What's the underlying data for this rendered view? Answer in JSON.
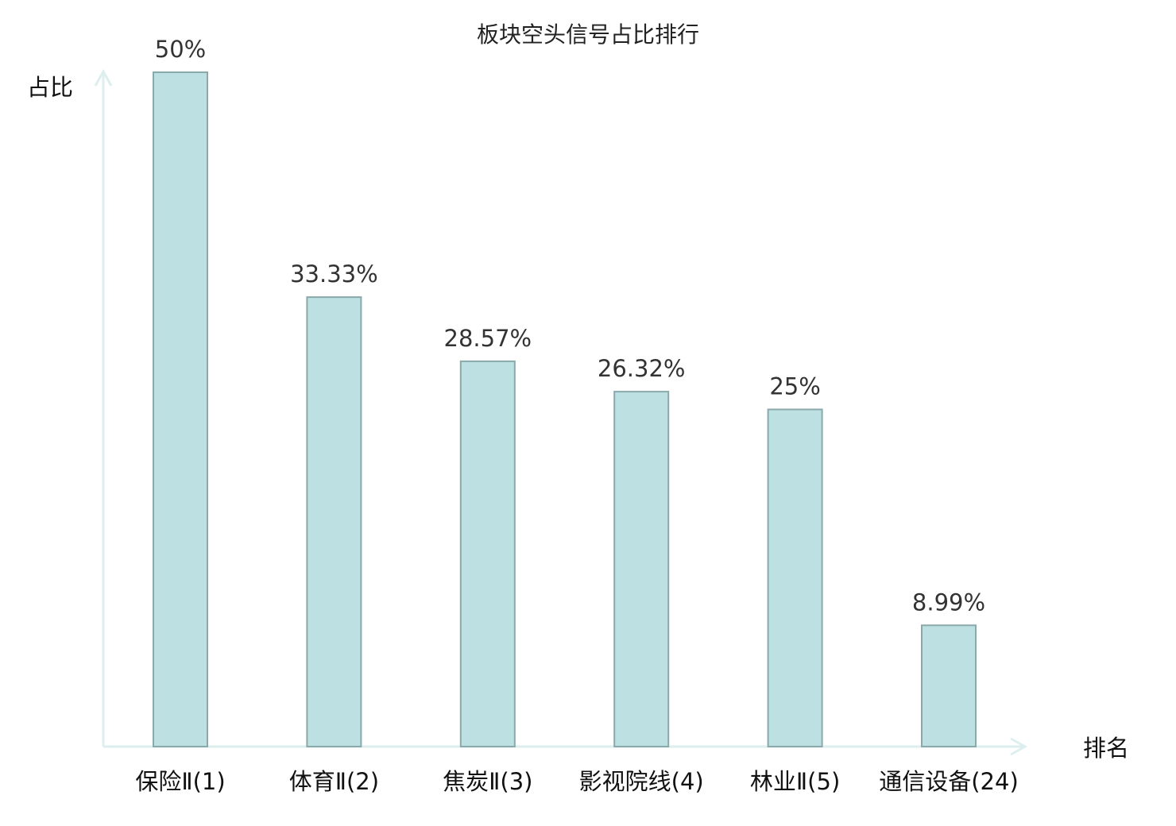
{
  "chart_data": {
    "type": "bar",
    "title": "板块空头信号占比排行",
    "ylabel": "占比",
    "xlabel": "排名",
    "categories": [
      "保险Ⅱ(1)",
      "体育Ⅱ(2)",
      "焦炭Ⅱ(3)",
      "影视院线(4)",
      "林业Ⅱ(5)",
      "通信设备(24)"
    ],
    "values": [
      50,
      33.33,
      28.57,
      26.32,
      25,
      8.99
    ],
    "value_labels": [
      "50%",
      "33.33%",
      "28.57%",
      "26.32%",
      "25%",
      "8.99%"
    ],
    "ylim": [
      0,
      50
    ],
    "grid": false,
    "highlight_index": 5
  },
  "colors": {
    "bar_fill": "#bde0e2",
    "bar_stroke": "#8aa9ab",
    "axis": "#dcefee",
    "highlight_text": "#e02020",
    "text": "#111111"
  }
}
